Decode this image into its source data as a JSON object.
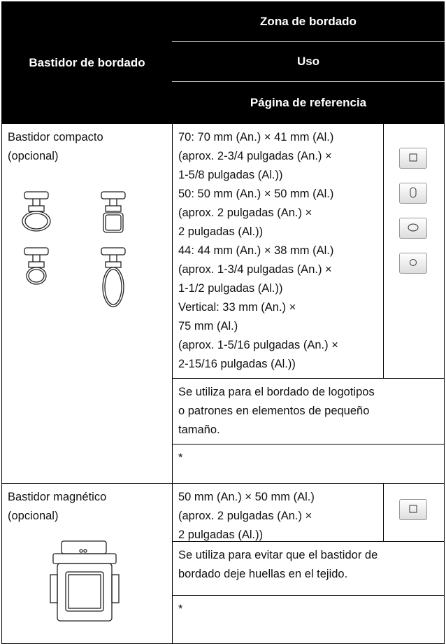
{
  "header": {
    "frame": "Bastidor de bordado",
    "zone": "Zona de bordado",
    "use": "Uso",
    "reference": "Página de referencia"
  },
  "rows": [
    {
      "frame": [
        "Bastidor compacto",
        "(opcional)"
      ],
      "zone": [
        "70: 70 mm (An.) × 41 mm (Al.)",
        "(aprox. 2-3/4 pulgadas (An.) ×",
        "1-5/8 pulgadas (Al.))",
        "50: 50 mm (An.) × 50 mm (Al.)",
        "(aprox. 2 pulgadas (An.) ×",
        "2 pulgadas (Al.))",
        "44: 44 mm (An.) × 38 mm (Al.)",
        "(aprox. 1-3/4 pulgadas (An.) ×",
        "1-1/2 pulgadas (Al.))",
        "Vertical: 33 mm (An.) ×",
        "75 mm (Al.)",
        "(aprox. 1-5/16 pulgadas (An.) ×",
        "2-15/16 pulgadas (Al.))"
      ],
      "use": [
        "Se utiliza para el bordado de logotipos",
        "o patrones en elementos de pequeño",
        "tamaño."
      ],
      "reference": "*"
    },
    {
      "frame": [
        "Bastidor magnético",
        "(opcional)"
      ],
      "zone": [
        "50 mm (An.) × 50 mm (Al.)",
        "(aprox. 2 pulgadas (An.) ×",
        "2 pulgadas (Al.))"
      ],
      "use": [
        "Se utiliza para evitar que el bastidor de",
        "bordado deje huellas en el tejido."
      ],
      "reference": "*"
    }
  ]
}
